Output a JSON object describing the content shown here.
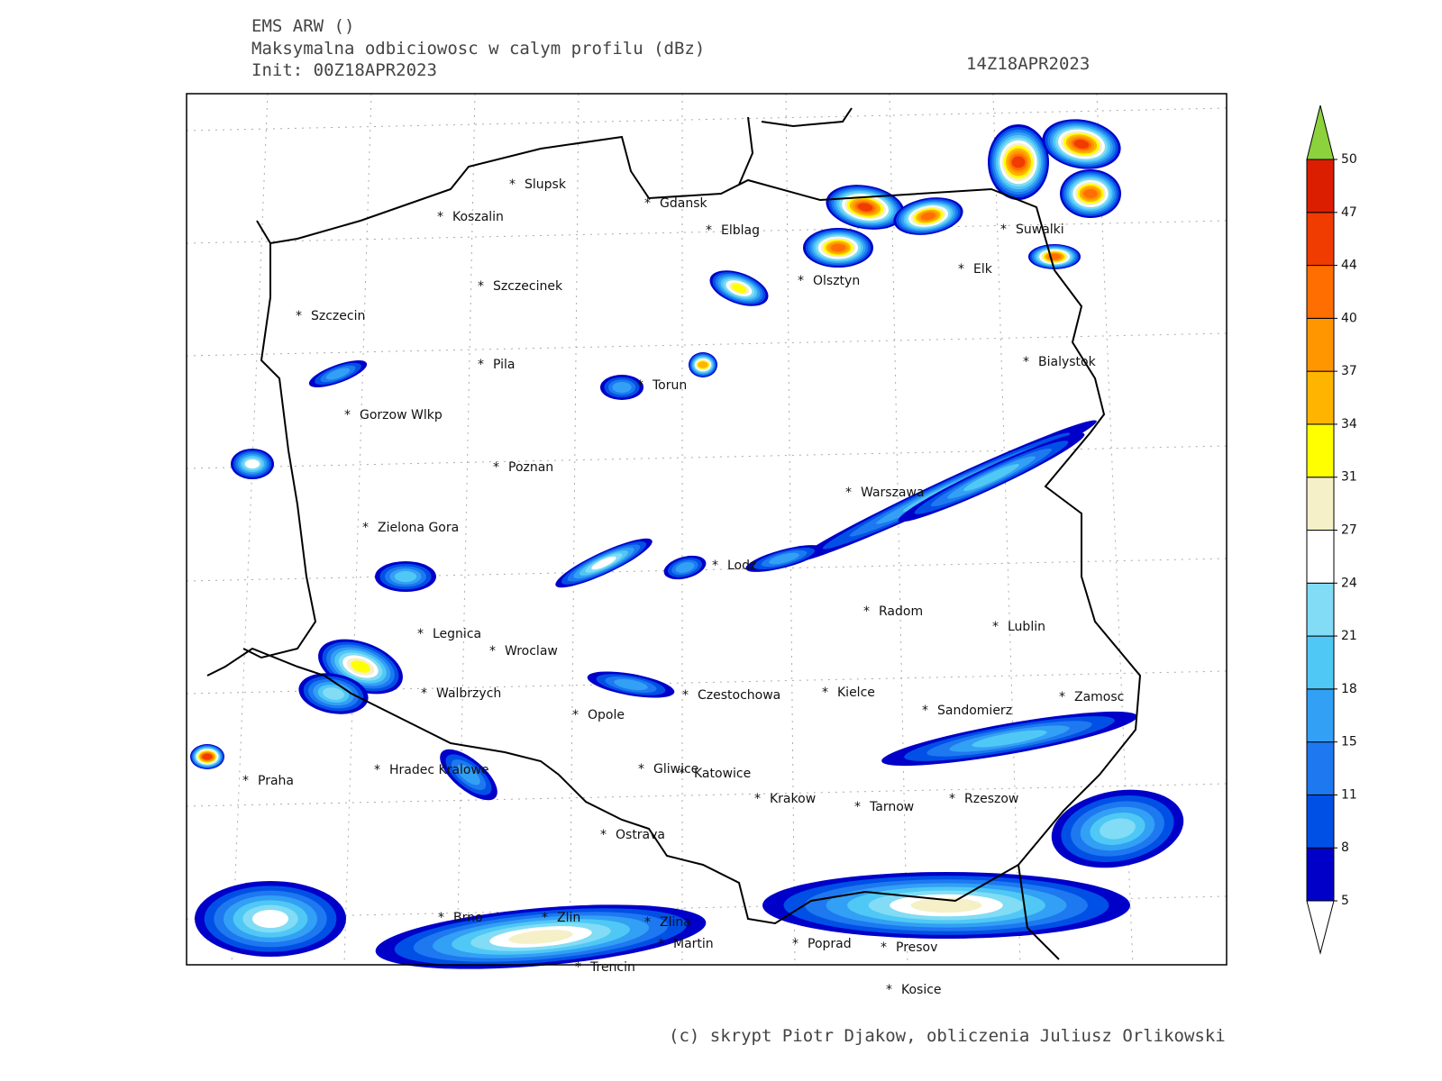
{
  "header": {
    "model": "EMS ARW ()",
    "title": "Maksymalna odbiciowosc w calym profilu (dBz)",
    "init": "Init: 00Z18APR2023",
    "valid": "14Z18APR2023"
  },
  "cities": [
    "Slupsk",
    "Koszalin",
    "Gdansk",
    "Elblag",
    "Szczecinek",
    "Szczecin",
    "Olsztyn",
    "Suwalki",
    "Elk",
    "Pila",
    "Torun",
    "Bialystok",
    "Gorzow Wlkp",
    "Poznan",
    "Warszawa",
    "Zielona Gora",
    "Lodz",
    "Radom",
    "Lublin",
    "Legnica",
    "Wroclaw",
    "Walbrzych",
    "Czestochowa",
    "Kielce",
    "Zamosc",
    "Sandomierz",
    "Opole",
    "Praha",
    "Hradec Kralowe",
    "Gliwice",
    "Katowice",
    "Krakow",
    "Tarnow",
    "Rzeszow",
    "Ostrava",
    "Brno",
    "Zlin",
    "Zlina",
    "Martin",
    "Poprad",
    "Presov",
    "Trencin",
    "Kosice"
  ],
  "colorbar": {
    "levels": [
      5,
      8,
      11,
      15,
      18,
      21,
      24,
      27,
      31,
      34,
      37,
      40,
      44,
      47,
      50
    ],
    "colors": [
      "#0000c8",
      "#0050e6",
      "#1e78f0",
      "#32a0f5",
      "#50c8f5",
      "#82dcf5",
      "#ffffff",
      "#f5f0c8",
      "#ffff00",
      "#ffb400",
      "#ff9600",
      "#ff6e00",
      "#f03c00",
      "#dc1e00"
    ],
    "over_color": "#8cd23c",
    "under_color": "#ffffff"
  },
  "footer": "(c) skrypt Piotr Djakow, obliczenia Juliusz Orlikowski"
}
